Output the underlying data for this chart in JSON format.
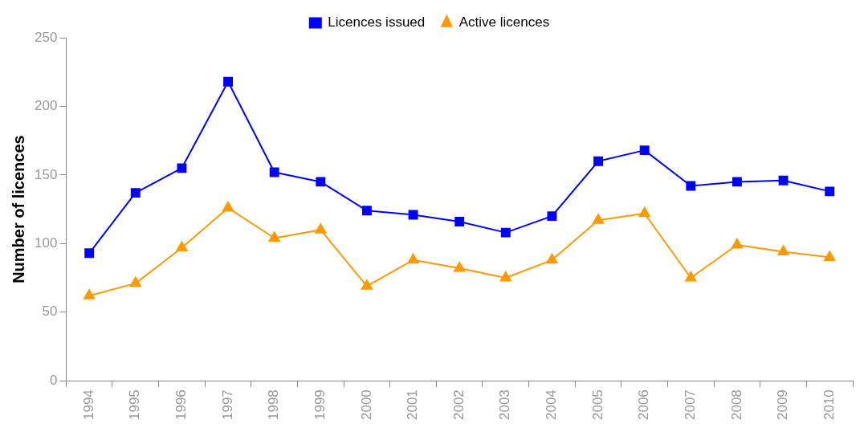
{
  "chart_data": {
    "type": "line",
    "ylabel": "Number of licences",
    "categories": [
      "1994",
      "1995",
      "1996",
      "1997",
      "1998",
      "1999",
      "2000",
      "2001",
      "2002",
      "2003",
      "2004",
      "2005",
      "2006",
      "2007",
      "2008",
      "2009",
      "2010"
    ],
    "series": [
      {
        "name": "Licences issued",
        "color": "#0000ff",
        "marker": "square",
        "values": [
          93,
          137,
          155,
          218,
          152,
          145,
          124,
          121,
          116,
          108,
          120,
          160,
          168,
          142,
          145,
          146,
          138
        ]
      },
      {
        "name": "Active licences",
        "color": "#ff9900",
        "marker": "triangle",
        "values": [
          62,
          71,
          97,
          126,
          104,
          110,
          69,
          88,
          82,
          75,
          88,
          117,
          122,
          75,
          99,
          94,
          90
        ]
      }
    ],
    "ylim": [
      0,
      250
    ],
    "yticks": [
      0,
      50,
      100,
      150,
      200,
      250
    ],
    "grid": false,
    "legend": "top",
    "line_style": "solid"
  }
}
